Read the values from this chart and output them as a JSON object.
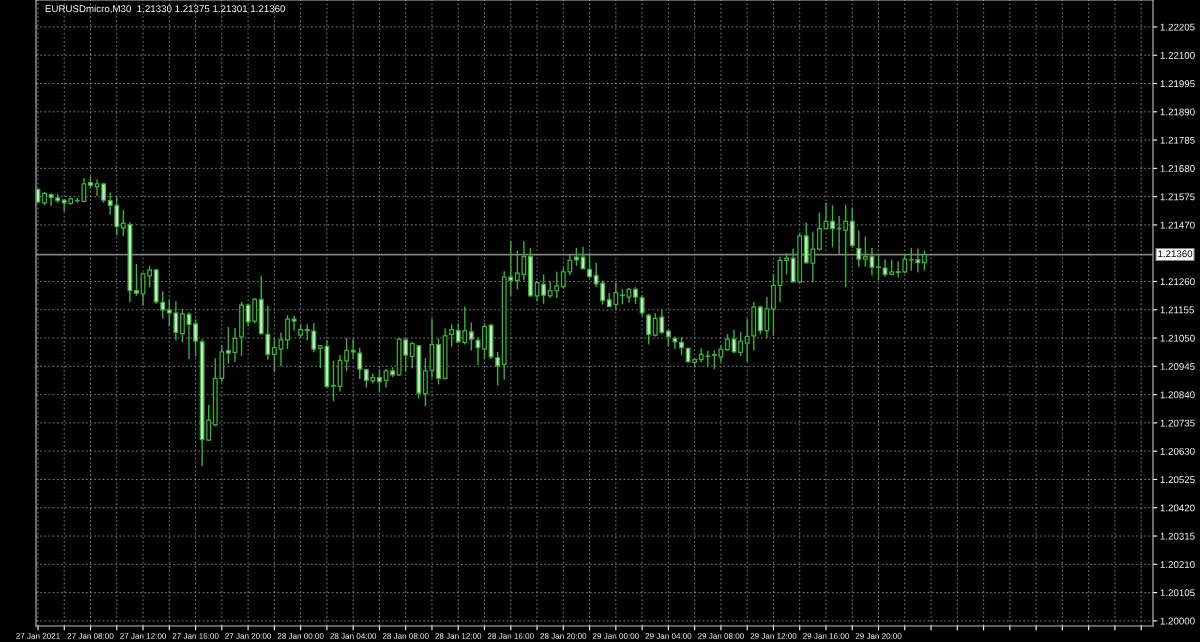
{
  "chart_data": {
    "type": "candlestick",
    "title": "EURUSDmicro,M30  1.21330 1.21375 1.21301 1.21360",
    "color": "#3fae3f",
    "x": [
      "2021-01-27T04:00",
      "2021-01-27T04:30",
      "2021-01-27T05:00",
      "2021-01-27T05:30",
      "2021-01-27T06:00",
      "2021-01-27T06:30",
      "2021-01-27T07:00",
      "2021-01-27T07:30",
      "2021-01-27T08:00",
      "2021-01-27T08:30",
      "2021-01-27T09:00",
      "2021-01-27T09:30",
      "2021-01-27T10:00",
      "2021-01-27T10:30",
      "2021-01-27T11:00",
      "2021-01-27T11:30",
      "2021-01-27T12:00",
      "2021-01-27T12:30",
      "2021-01-27T13:00",
      "2021-01-27T13:30",
      "2021-01-27T14:00",
      "2021-01-27T14:30",
      "2021-01-27T15:00",
      "2021-01-27T15:30",
      "2021-01-27T16:00",
      "2021-01-27T16:30",
      "2021-01-27T17:00",
      "2021-01-27T17:30",
      "2021-01-27T18:00",
      "2021-01-27T18:30",
      "2021-01-27T19:00",
      "2021-01-27T19:30",
      "2021-01-27T20:00",
      "2021-01-27T20:30",
      "2021-01-27T21:00",
      "2021-01-27T21:30",
      "2021-01-27T22:00",
      "2021-01-27T22:30",
      "2021-01-27T23:00",
      "2021-01-27T23:30",
      "2021-01-28T00:00",
      "2021-01-28T00:30",
      "2021-01-28T01:00",
      "2021-01-28T01:30",
      "2021-01-28T02:00",
      "2021-01-28T02:30",
      "2021-01-28T03:00",
      "2021-01-28T03:30",
      "2021-01-28T04:00",
      "2021-01-28T04:30",
      "2021-01-28T05:00",
      "2021-01-28T05:30",
      "2021-01-28T06:00",
      "2021-01-28T06:30",
      "2021-01-28T07:00",
      "2021-01-28T07:30",
      "2021-01-28T08:00",
      "2021-01-28T08:30",
      "2021-01-28T09:00",
      "2021-01-28T09:30",
      "2021-01-28T10:00",
      "2021-01-28T10:30",
      "2021-01-28T11:00",
      "2021-01-28T11:30",
      "2021-01-28T12:00",
      "2021-01-28T12:30",
      "2021-01-28T13:00",
      "2021-01-28T13:30",
      "2021-01-28T14:00",
      "2021-01-28T14:30",
      "2021-01-28T15:00",
      "2021-01-28T15:30",
      "2021-01-28T16:00",
      "2021-01-28T16:30",
      "2021-01-28T17:00",
      "2021-01-28T17:30",
      "2021-01-28T18:00",
      "2021-01-28T18:30",
      "2021-01-28T19:00",
      "2021-01-28T19:30",
      "2021-01-28T20:00",
      "2021-01-28T20:30",
      "2021-01-28T21:00",
      "2021-01-28T21:30",
      "2021-01-28T22:00",
      "2021-01-28T22:30",
      "2021-01-28T23:00",
      "2021-01-28T23:30",
      "2021-01-29T00:00",
      "2021-01-29T00:30",
      "2021-01-29T01:00",
      "2021-01-29T01:30",
      "2021-01-29T02:00",
      "2021-01-29T02:30",
      "2021-01-29T03:00",
      "2021-01-29T03:30",
      "2021-01-29T04:00",
      "2021-01-29T04:30",
      "2021-01-29T05:00",
      "2021-01-29T05:30",
      "2021-01-29T06:00",
      "2021-01-29T06:30",
      "2021-01-29T07:00",
      "2021-01-29T07:30",
      "2021-01-29T08:00",
      "2021-01-29T08:30",
      "2021-01-29T09:00",
      "2021-01-29T09:30",
      "2021-01-29T10:00",
      "2021-01-29T10:30",
      "2021-01-29T11:00",
      "2021-01-29T11:30",
      "2021-01-29T12:00",
      "2021-01-29T12:30",
      "2021-01-29T13:00",
      "2021-01-29T13:30",
      "2021-01-29T14:00",
      "2021-01-29T14:30",
      "2021-01-29T15:00",
      "2021-01-29T15:30",
      "2021-01-29T16:00",
      "2021-01-29T16:30",
      "2021-01-29T17:00",
      "2021-01-29T17:30",
      "2021-01-29T18:00",
      "2021-01-29T18:30",
      "2021-01-29T19:00",
      "2021-01-29T19:30",
      "2021-01-29T20:00",
      "2021-01-29T20:30",
      "2021-01-29T21:00",
      "2021-01-29T21:30",
      "2021-01-29T22:00",
      "2021-01-29T22:30",
      "2021-01-29T23:00",
      "2021-01-29T23:30"
    ],
    "ohlc": [
      [
        1.21602,
        1.21604,
        1.21552,
        1.21555
      ],
      [
        1.21552,
        1.21592,
        1.21543,
        1.21587
      ],
      [
        1.21582,
        1.21587,
        1.2154,
        1.21572
      ],
      [
        1.2157,
        1.21585,
        1.21552,
        1.2156
      ],
      [
        1.21562,
        1.21565,
        1.2152,
        1.21552
      ],
      [
        1.2155,
        1.21572,
        1.21545,
        1.21567
      ],
      [
        1.2156,
        1.2157,
        1.21552,
        1.21561
      ],
      [
        1.21557,
        1.21644,
        1.21555,
        1.21622
      ],
      [
        1.21627,
        1.21651,
        1.21607,
        1.21617
      ],
      [
        1.21612,
        1.21639,
        1.21577,
        1.21622
      ],
      [
        1.21622,
        1.21624,
        1.21552,
        1.21562
      ],
      [
        1.2156,
        1.2159,
        1.21508,
        1.21543
      ],
      [
        1.21543,
        1.21575,
        1.21432,
        1.21464
      ],
      [
        1.21459,
        1.21525,
        1.21429,
        1.21476
      ],
      [
        1.21471,
        1.21481,
        1.21184,
        1.21226
      ],
      [
        1.21226,
        1.21325,
        1.21207,
        1.21217
      ],
      [
        1.21214,
        1.21293,
        1.2117,
        1.21288
      ],
      [
        1.21281,
        1.21318,
        1.21239,
        1.21303
      ],
      [
        1.21303,
        1.21305,
        1.21177,
        1.21184
      ],
      [
        1.21182,
        1.21224,
        1.21123,
        1.21155
      ],
      [
        1.21155,
        1.21194,
        1.21093,
        1.21143
      ],
      [
        1.21143,
        1.21187,
        1.21041,
        1.21071
      ],
      [
        1.21066,
        1.21158,
        1.21034,
        1.2114
      ],
      [
        1.21138,
        1.21145,
        1.20972,
        1.21101
      ],
      [
        1.21103,
        1.2112,
        1.20982,
        1.21039
      ],
      [
        1.21036,
        1.21046,
        1.20574,
        1.20673
      ],
      [
        1.20671,
        1.20802,
        1.20668,
        1.20745
      ],
      [
        1.20728,
        1.20975,
        1.20723,
        1.209
      ],
      [
        1.209,
        1.21021,
        1.20886,
        1.20999
      ],
      [
        1.21003,
        1.21091,
        1.20955,
        1.20994
      ],
      [
        1.20997,
        1.21087,
        1.2096,
        1.21049
      ],
      [
        1.21054,
        1.21184,
        1.20984,
        1.21172
      ],
      [
        1.21172,
        1.21177,
        1.21095,
        1.2111
      ],
      [
        1.21113,
        1.21199,
        1.21105,
        1.21194
      ],
      [
        1.21194,
        1.21281,
        1.21064,
        1.21066
      ],
      [
        1.21064,
        1.2117,
        1.2097,
        1.20989
      ],
      [
        1.20989,
        1.21049,
        1.20923,
        1.21014
      ],
      [
        1.21009,
        1.21071,
        1.20945,
        1.21043
      ],
      [
        1.21043,
        1.21135,
        1.21009,
        1.2112
      ],
      [
        1.2112,
        1.21133,
        1.21078,
        1.21113
      ],
      [
        1.21061,
        1.21103,
        1.21054,
        1.21081
      ],
      [
        1.21081,
        1.21101,
        1.21041,
        1.21078
      ],
      [
        1.21076,
        1.21105,
        1.20997,
        1.21009
      ],
      [
        1.21012,
        1.21024,
        1.20938,
        1.21021
      ],
      [
        1.21019,
        1.21043,
        1.20866,
        1.20871
      ],
      [
        1.20874,
        1.20965,
        1.20816,
        1.20872
      ],
      [
        1.20871,
        1.20987,
        1.20851,
        1.20967
      ],
      [
        1.20965,
        1.21051,
        1.20928,
        1.21004
      ],
      [
        1.21004,
        1.21046,
        1.20972,
        1.20999
      ],
      [
        1.20994,
        1.21014,
        1.20898,
        1.20935
      ],
      [
        1.20933,
        1.20935,
        1.20866,
        1.20893
      ],
      [
        1.20891,
        1.20918,
        1.20881,
        1.20903
      ],
      [
        1.20903,
        1.20935,
        1.20851,
        1.20888
      ],
      [
        1.20893,
        1.20935,
        1.20866,
        1.20928
      ],
      [
        1.20928,
        1.20942,
        1.20905,
        1.20913
      ],
      [
        1.20913,
        1.21051,
        1.2091,
        1.21046
      ],
      [
        1.21043,
        1.21049,
        1.20925,
        1.20987
      ],
      [
        1.20982,
        1.21036,
        1.20938,
        1.21029
      ],
      [
        1.21021,
        1.21024,
        1.20826,
        1.20846
      ],
      [
        1.20844,
        1.20975,
        1.20797,
        1.20928
      ],
      [
        1.2093,
        1.21123,
        1.20903,
        1.21026
      ],
      [
        1.21026,
        1.21049,
        1.20878,
        1.209
      ],
      [
        1.209,
        1.21086,
        1.20896,
        1.21058
      ],
      [
        1.21064,
        1.21101,
        1.21019,
        1.21081
      ],
      [
        1.21078,
        1.21105,
        1.21031,
        1.21036
      ],
      [
        1.21034,
        1.21167,
        1.21026,
        1.21078
      ],
      [
        1.21073,
        1.21108,
        1.21004,
        1.21046
      ],
      [
        1.21041,
        1.21054,
        1.2095,
        1.21014
      ],
      [
        1.21009,
        1.21105,
        1.20972,
        1.21093
      ],
      [
        1.21098,
        1.21101,
        1.20972,
        1.2098
      ],
      [
        1.20977,
        1.20999,
        1.20874,
        1.20947
      ],
      [
        1.20952,
        1.21298,
        1.20896,
        1.21276
      ],
      [
        1.21276,
        1.21409,
        1.21207,
        1.21264
      ],
      [
        1.21264,
        1.21375,
        1.21231,
        1.21291
      ],
      [
        1.21286,
        1.21409,
        1.21264,
        1.21352
      ],
      [
        1.21352,
        1.21385,
        1.21204,
        1.21207
      ],
      [
        1.21207,
        1.21261,
        1.21187,
        1.21256
      ],
      [
        1.21249,
        1.21286,
        1.21177,
        1.21209
      ],
      [
        1.21207,
        1.21261,
        1.21199,
        1.21226
      ],
      [
        1.21226,
        1.21296,
        1.21199,
        1.21244
      ],
      [
        1.21241,
        1.2131,
        1.21234,
        1.21296
      ],
      [
        1.21296,
        1.2136,
        1.21283,
        1.21338
      ],
      [
        1.2135,
        1.21385,
        1.21318,
        1.2134
      ],
      [
        1.2135,
        1.21389,
        1.21305,
        1.21308
      ],
      [
        1.21305,
        1.21367,
        1.21273,
        1.21278
      ],
      [
        1.21283,
        1.2133,
        1.21239,
        1.21251
      ],
      [
        1.21254,
        1.21264,
        1.21175,
        1.21189
      ],
      [
        1.21192,
        1.21217,
        1.21165,
        1.21167
      ],
      [
        1.21175,
        1.21256,
        1.21155,
        1.21219
      ],
      [
        1.21209,
        1.21231,
        1.21175,
        1.21208
      ],
      [
        1.21202,
        1.21236,
        1.21182,
        1.21231
      ],
      [
        1.21231,
        1.21239,
        1.21177,
        1.21202
      ],
      [
        1.21199,
        1.21209,
        1.21133,
        1.21143
      ],
      [
        1.21135,
        1.2114,
        1.21026,
        1.21064
      ],
      [
        1.21061,
        1.21143,
        1.21056,
        1.21123
      ],
      [
        1.21128,
        1.21155,
        1.21066,
        1.21071
      ],
      [
        1.21076,
        1.21081,
        1.21021,
        1.21056
      ],
      [
        1.21049,
        1.21056,
        1.21009,
        1.21036
      ],
      [
        1.21034,
        1.21054,
        1.20987,
        1.21014
      ],
      [
        1.21012,
        1.21014,
        1.2096,
        1.20962
      ],
      [
        1.2096,
        1.20975,
        1.20942,
        1.2097
      ],
      [
        1.2097,
        1.21012,
        1.2096,
        1.20989
      ],
      [
        1.20982,
        1.21003,
        1.20945,
        1.20983
      ],
      [
        1.20986,
        1.21004,
        1.20935,
        1.20988
      ],
      [
        1.2098,
        1.21024,
        1.2096,
        1.21009
      ],
      [
        1.21007,
        1.21064,
        1.21003,
        1.21046
      ],
      [
        1.21046,
        1.21081,
        1.20994,
        1.20999
      ],
      [
        1.20997,
        1.21073,
        1.20984,
        1.21039
      ],
      [
        1.21031,
        1.21123,
        1.20962,
        1.21056
      ],
      [
        1.21058,
        1.21184,
        1.21004,
        1.21165
      ],
      [
        1.21165,
        1.2117,
        1.21064,
        1.21078
      ],
      [
        1.21078,
        1.21202,
        1.21049,
        1.21158
      ],
      [
        1.21158,
        1.21288,
        1.21058,
        1.21246
      ],
      [
        1.21246,
        1.21352,
        1.21184,
        1.21338
      ],
      [
        1.21338,
        1.21365,
        1.21286,
        1.21347
      ],
      [
        1.21347,
        1.21382,
        1.21256,
        1.21259
      ],
      [
        1.21259,
        1.21439,
        1.21254,
        1.21429
      ],
      [
        1.21429,
        1.21478,
        1.21325,
        1.2133
      ],
      [
        1.21328,
        1.21446,
        1.21256,
        1.2138
      ],
      [
        1.2138,
        1.21515,
        1.21375,
        1.21456
      ],
      [
        1.21456,
        1.21553,
        1.21454,
        1.21483
      ],
      [
        1.21483,
        1.21543,
        1.21387,
        1.21456
      ],
      [
        1.21456,
        1.21503,
        1.2136,
        1.21457
      ],
      [
        1.21451,
        1.21545,
        1.21239,
        1.21483
      ],
      [
        1.21483,
        1.21533,
        1.21385,
        1.21394
      ],
      [
        1.21382,
        1.21449,
        1.21315,
        1.21343
      ],
      [
        1.21343,
        1.21426,
        1.21315,
        1.21352
      ],
      [
        1.21352,
        1.21385,
        1.21283,
        1.21313
      ],
      [
        1.21314,
        1.21362,
        1.21264,
        1.21313
      ],
      [
        1.2131,
        1.21343,
        1.21278,
        1.21286
      ],
      [
        1.21286,
        1.2134,
        1.21283,
        1.21296
      ],
      [
        1.21296,
        1.21335,
        1.21276,
        1.21294
      ],
      [
        1.21296,
        1.2136,
        1.21291,
        1.21343
      ],
      [
        1.2134,
        1.21385,
        1.213,
        1.21341
      ],
      [
        1.2134,
        1.21382,
        1.21293,
        1.2133
      ],
      [
        1.2133,
        1.21375,
        1.21301,
        1.2136
      ]
    ],
    "xlim": [
      "2021-01-27T03:51",
      "2021-01-30T16:54"
    ],
    "xticks": [
      {
        "value": "2021-01-27T04:00",
        "label": "27 Jan 2021"
      },
      {
        "value": "2021-01-27T06:00",
        "label": null
      },
      {
        "value": "2021-01-27T08:00",
        "label": "27 Jan 08:00"
      },
      {
        "value": "2021-01-27T10:00",
        "label": null
      },
      {
        "value": "2021-01-27T12:00",
        "label": "27 Jan 12:00"
      },
      {
        "value": "2021-01-27T14:00",
        "label": null
      },
      {
        "value": "2021-01-27T16:00",
        "label": "27 Jan 16:00"
      },
      {
        "value": "2021-01-27T18:00",
        "label": null
      },
      {
        "value": "2021-01-27T20:00",
        "label": "27 Jan 20:00"
      },
      {
        "value": "2021-01-27T22:00",
        "label": null
      },
      {
        "value": "2021-01-28T00:00",
        "label": "28 Jan 00:00"
      },
      {
        "value": "2021-01-28T02:00",
        "label": null
      },
      {
        "value": "2021-01-28T04:00",
        "label": "28 Jan 04:00"
      },
      {
        "value": "2021-01-28T06:00",
        "label": null
      },
      {
        "value": "2021-01-28T08:00",
        "label": "28 Jan 08:00"
      },
      {
        "value": "2021-01-28T10:00",
        "label": null
      },
      {
        "value": "2021-01-28T12:00",
        "label": "28 Jan 12:00"
      },
      {
        "value": "2021-01-28T14:00",
        "label": null
      },
      {
        "value": "2021-01-28T16:00",
        "label": "28 Jan 16:00"
      },
      {
        "value": "2021-01-28T18:00",
        "label": null
      },
      {
        "value": "2021-01-28T20:00",
        "label": "28 Jan 20:00"
      },
      {
        "value": "2021-01-28T22:00",
        "label": null
      },
      {
        "value": "2021-01-29T00:00",
        "label": "29 Jan 00:00"
      },
      {
        "value": "2021-01-29T02:00",
        "label": null
      },
      {
        "value": "2021-01-29T04:00",
        "label": "29 Jan 04:00"
      },
      {
        "value": "2021-01-29T06:00",
        "label": null
      },
      {
        "value": "2021-01-29T08:00",
        "label": "29 Jan 08:00"
      },
      {
        "value": "2021-01-29T10:00",
        "label": null
      },
      {
        "value": "2021-01-29T12:00",
        "label": "29 Jan 12:00"
      },
      {
        "value": "2021-01-29T14:00",
        "label": null
      },
      {
        "value": "2021-01-29T16:00",
        "label": "29 Jan 16:00"
      },
      {
        "value": "2021-01-29T18:00",
        "label": null
      },
      {
        "value": "2021-01-29T20:00",
        "label": "29 Jan 20:00"
      },
      {
        "value": "2021-01-29T22:00",
        "label": null
      },
      {
        "value": "2021-01-30T00:00",
        "label": null
      },
      {
        "value": "2021-01-30T02:00",
        "label": null
      },
      {
        "value": "2021-01-30T04:00",
        "label": null
      },
      {
        "value": "2021-01-30T06:00",
        "label": null
      },
      {
        "value": "2021-01-30T08:00",
        "label": null
      },
      {
        "value": "2021-01-30T10:00",
        "label": null
      },
      {
        "value": "2021-01-30T12:00",
        "label": null
      },
      {
        "value": "2021-01-30T14:00",
        "label": null
      },
      {
        "value": "2021-01-30T16:00",
        "label": null
      }
    ],
    "ylim": [
      1.19981,
      1.22305
    ],
    "yticks": [
      {
        "value": 1.2,
        "label": "1.20000"
      },
      {
        "value": 1.20105,
        "label": "1.20105"
      },
      {
        "value": 1.2021,
        "label": "1.20210"
      },
      {
        "value": 1.20315,
        "label": "1.20315"
      },
      {
        "value": 1.2042,
        "label": "1.20420"
      },
      {
        "value": 1.20525,
        "label": "1.20525"
      },
      {
        "value": 1.2063,
        "label": "1.20630"
      },
      {
        "value": 1.20735,
        "label": "1.20735"
      },
      {
        "value": 1.2084,
        "label": "1.20840"
      },
      {
        "value": 1.20945,
        "label": "1.20945"
      },
      {
        "value": 1.2105,
        "label": "1.21050"
      },
      {
        "value": 1.21155,
        "label": "1.21155"
      },
      {
        "value": 1.2126,
        "label": "1.21260"
      },
      {
        "value": 1.2147,
        "label": "1.21470"
      },
      {
        "value": 1.21575,
        "label": "1.21575"
      },
      {
        "value": 1.2168,
        "label": "1.21680"
      },
      {
        "value": 1.21785,
        "label": "1.21785"
      },
      {
        "value": 1.2189,
        "label": "1.21890"
      },
      {
        "value": 1.21995,
        "label": "1.21995"
      },
      {
        "value": 1.221,
        "label": "1.22100"
      },
      {
        "value": 1.22205,
        "label": "1.22205"
      }
    ],
    "ref_lines": [
      {
        "axis": "y",
        "value": 1.2136,
        "label": "1.21360",
        "color": "#808080"
      }
    ],
    "grid": true
  }
}
